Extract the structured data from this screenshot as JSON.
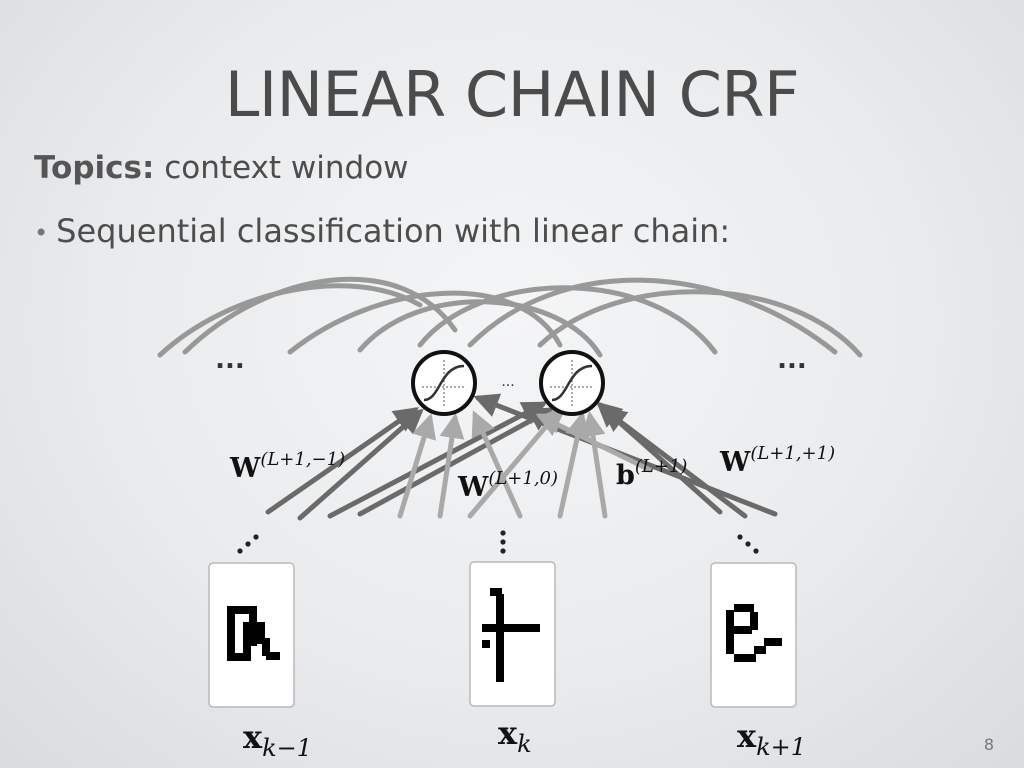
{
  "slide": {
    "title": "LINEAR CHAIN CRF",
    "topics_label": "Topics:",
    "topics_text": "context window",
    "bullet": "Sequential classification with linear chain:",
    "slide_number": "8"
  },
  "diagram": {
    "ellipsis_left": "...",
    "ellipsis_right": "...",
    "ellipsis_middle": "...",
    "weight_left": {
      "base": "W",
      "sup": "(L+1,−1)"
    },
    "weight_center": {
      "base": "W",
      "sup": "(L+1,0)"
    },
    "bias": {
      "base": "b",
      "sup": "(L+1)"
    },
    "weight_right": {
      "base": "W",
      "sup": "(L+1,+1)"
    },
    "input_prev": {
      "base": "x",
      "sub": "k−1"
    },
    "input_curr": {
      "base": "x",
      "sub": "k"
    },
    "input_next": {
      "base": "x",
      "sub": "k+1"
    }
  },
  "colors": {
    "arc_color": "#8a8a8a",
    "arrow_dark": "#6a6a6a",
    "arrow_light": "#a9a9a9",
    "node_stroke": "#111111"
  }
}
